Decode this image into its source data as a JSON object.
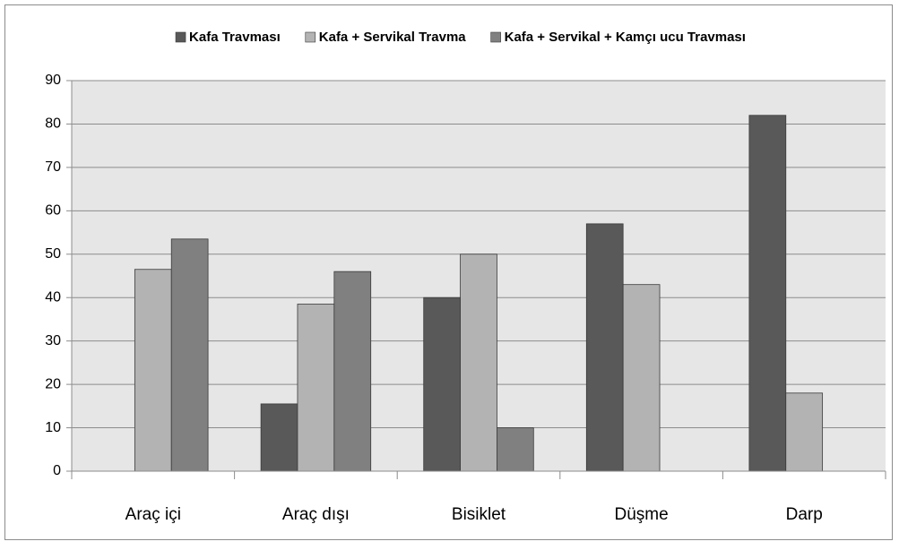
{
  "chart_data": {
    "type": "bar",
    "categories": [
      "Araç içi",
      "Araç dışı",
      "Bisiklet",
      "Düşme",
      "Darp"
    ],
    "series": [
      {
        "name": "Kafa Travması",
        "color": "#595959",
        "values": [
          0,
          15.5,
          40,
          57,
          82
        ]
      },
      {
        "name": "Kafa + Servikal Travma",
        "color": "#b3b3b3",
        "values": [
          46.5,
          38.5,
          50,
          43,
          18
        ]
      },
      {
        "name": "Kafa + Servikal + Kamçı ucu Travması",
        "color": "#808080",
        "values": [
          53.5,
          46,
          10,
          0,
          0
        ]
      }
    ],
    "ylim": [
      0,
      90
    ],
    "yticks": [
      0,
      10,
      20,
      30,
      40,
      50,
      60,
      70,
      80,
      90
    ],
    "grid": true,
    "legend": "top"
  }
}
